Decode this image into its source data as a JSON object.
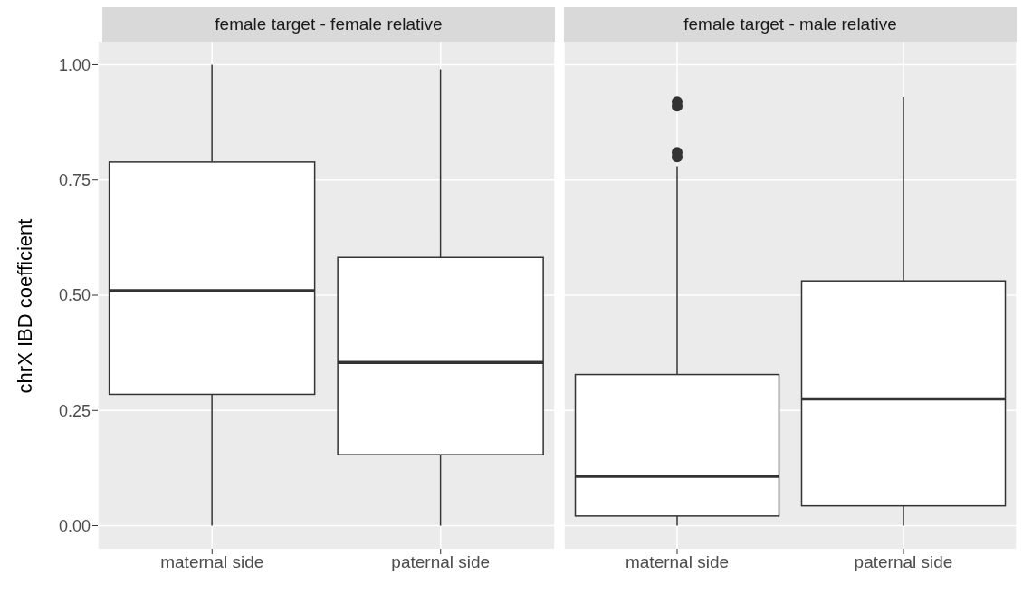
{
  "chart_data": [
    {
      "type": "box",
      "title": "female target - female relative",
      "ylabel": "chrX IBD coefficient",
      "categories": [
        "maternal side",
        "paternal side"
      ],
      "boxes": [
        {
          "low": 0,
          "q1": 0.285,
          "median": 0.51,
          "q3": 0.789,
          "high": 1.0
        },
        {
          "low": 0,
          "q1": 0.154,
          "median": 0.354,
          "q3": 0.582,
          "high": 0.99
        }
      ],
      "ylim": [
        -0.05,
        1.05
      ],
      "yticks": [
        {
          "value": 0,
          "label": "0.00"
        },
        {
          "value": 0.25,
          "label": "0.25"
        },
        {
          "value": 0.5,
          "label": "0.50"
        },
        {
          "value": 0.75,
          "label": "0.75"
        },
        {
          "value": 1,
          "label": "1.00"
        }
      ],
      "grid": true
    },
    {
      "type": "box",
      "title": "female target - male relative",
      "categories": [
        "maternal side",
        "paternal side"
      ],
      "boxes": [
        {
          "low": 0,
          "q1": 0.021,
          "median": 0.107,
          "q3": 0.328,
          "high": 0.78,
          "outliers": [
            0.8,
            0.81,
            0.91,
            0.92
          ]
        },
        {
          "low": 0,
          "q1": 0.043,
          "median": 0.275,
          "q3": 0.531,
          "high": 0.93
        }
      ],
      "ylim": [
        -0.05,
        1.05
      ],
      "yticks": [
        0,
        0.25,
        0.5,
        0.75,
        1
      ],
      "grid": true,
      "tick_labels": "x"
    }
  ]
}
